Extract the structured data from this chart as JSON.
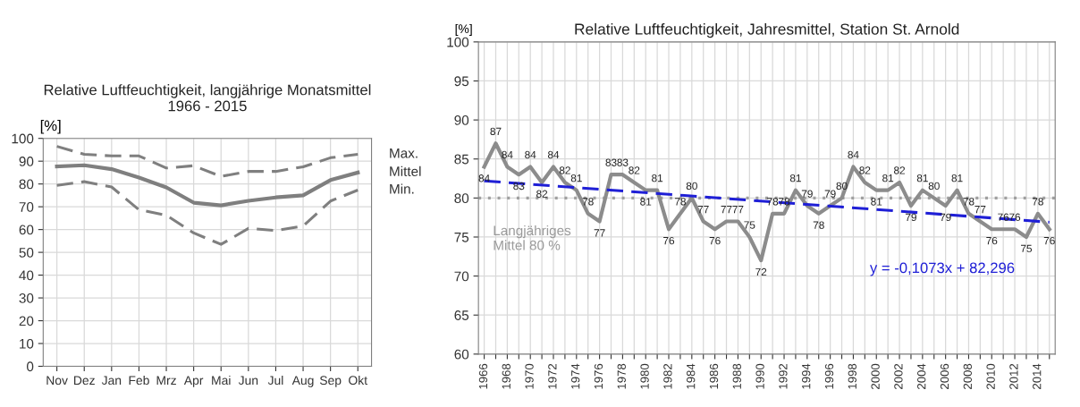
{
  "chart_data": [
    {
      "type": "line",
      "title": "Relative Luftfeuchtigkeit, langjährige Monatsmittel\n1966 - 2015",
      "ylabel": "[%]",
      "categories": [
        "Nov",
        "Dez",
        "Jan",
        "Feb",
        "Mrz",
        "Apr",
        "Mai",
        "Jun",
        "Jul",
        "Aug",
        "Sep",
        "Okt"
      ],
      "series": [
        {
          "name": "Max.",
          "color": "#7f7f7f",
          "line_style": "dashed",
          "values": [
            96.5,
            93,
            92.3,
            92.3,
            87,
            88,
            83.3,
            85.5,
            85.5,
            87.5,
            91.5,
            93
          ]
        },
        {
          "name": "Mittel",
          "color": "#7f7f7f",
          "line_style": "solid",
          "values": [
            87.7,
            88.2,
            86.5,
            82.8,
            78.5,
            71.8,
            70.6,
            72.6,
            74.1,
            75,
            81.7,
            85
          ]
        },
        {
          "name": "Min.",
          "color": "#7f7f7f",
          "line_style": "dashed",
          "values": [
            79.4,
            81,
            78.7,
            68.7,
            66.3,
            58.5,
            53.5,
            60.5,
            59.6,
            61.5,
            72.5,
            77.3
          ]
        }
      ],
      "ylim": [
        0,
        100
      ],
      "yticks": [
        0,
        10,
        20,
        30,
        40,
        50,
        60,
        70,
        80,
        90,
        100
      ],
      "grid": true,
      "legend": false
    },
    {
      "type": "line",
      "title": "Relative Luftfeuchtigkeit, Jahresmittel, Station St. Arnold",
      "ylabel": "[%]",
      "series": [
        {
          "color": "#8c8c8c",
          "data_labels": true,
          "x": [
            1966,
            1967,
            1968,
            1969,
            1970,
            1971,
            1972,
            1973,
            1974,
            1975,
            1976,
            1977,
            1978,
            1979,
            1980,
            1981,
            1982,
            1983,
            1984,
            1985,
            1986,
            1987,
            1988,
            1989,
            1990,
            1991,
            1992,
            1993,
            1994,
            1995,
            1996,
            1997,
            1998,
            1999,
            2000,
            2001,
            2002,
            2003,
            2004,
            2005,
            2006,
            2007,
            2008,
            2009,
            2010,
            2011,
            2012,
            2013,
            2014,
            2015
          ],
          "values": [
            84,
            87,
            84,
            83,
            84,
            82,
            84,
            82,
            81,
            78,
            77,
            83,
            83,
            82,
            81,
            81,
            76,
            78,
            80,
            77,
            76,
            77,
            77,
            75,
            72,
            78,
            78,
            81,
            79,
            78,
            79,
            80,
            84,
            82,
            81,
            81,
            82,
            79,
            81,
            80,
            79,
            81,
            78,
            77,
            76,
            76,
            76,
            75,
            78,
            76
          ]
        },
        {
          "type": "line",
          "color": "#1f1fd6",
          "line_style": "dashed",
          "x": [
            1966,
            2015
          ],
          "values": [
            82.2,
            76.9
          ]
        }
      ],
      "ref_lines": [
        {
          "axis": "y",
          "value": 80,
          "label": "Langjähriges\nMittel 80 %",
          "color": "#a0a0a0",
          "line_style": "dotted"
        }
      ],
      "annotations": [
        "y = -0,1073x + 82,296"
      ],
      "xlim": [
        1965.5,
        2015.5
      ],
      "xticks": [
        1966,
        {
          "value": 1967,
          "label": null
        },
        1968,
        {
          "value": 1969,
          "label": null
        },
        1970,
        {
          "value": 1971,
          "label": null
        },
        1972,
        {
          "value": 1973,
          "label": null
        },
        1974,
        {
          "value": 1975,
          "label": null
        },
        1976,
        {
          "value": 1977,
          "label": null
        },
        1978,
        {
          "value": 1979,
          "label": null
        },
        1980,
        {
          "value": 1981,
          "label": null
        },
        1982,
        {
          "value": 1983,
          "label": null
        },
        1984,
        {
          "value": 1985,
          "label": null
        },
        1986,
        {
          "value": 1987,
          "label": null
        },
        1988,
        {
          "value": 1989,
          "label": null
        },
        1990,
        {
          "value": 1991,
          "label": null
        },
        1992,
        {
          "value": 1993,
          "label": null
        },
        1994,
        {
          "value": 1995,
          "label": null
        },
        1996,
        {
          "value": 1997,
          "label": null
        },
        1998,
        {
          "value": 1999,
          "label": null
        },
        2000,
        {
          "value": 2001,
          "label": null
        },
        2002,
        {
          "value": 2003,
          "label": null
        },
        2004,
        {
          "value": 2005,
          "label": null
        },
        2006,
        {
          "value": 2007,
          "label": null
        },
        2008,
        {
          "value": 2009,
          "label": null
        },
        2010,
        {
          "value": 2011,
          "label": null
        },
        2012,
        {
          "value": 2013,
          "label": null
        },
        2014,
        {
          "value": 2015,
          "label": null
        }
      ],
      "ylim": [
        60,
        100
      ],
      "yticks": [
        60,
        65,
        70,
        75,
        80,
        85,
        90,
        95,
        100
      ],
      "grid": true
    }
  ]
}
